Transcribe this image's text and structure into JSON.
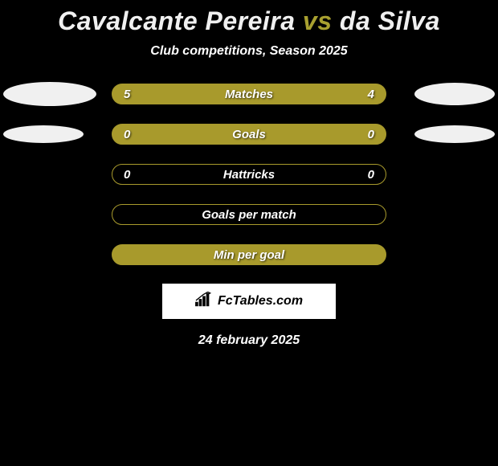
{
  "title": {
    "player1": "Cavalcante Pereira",
    "vs": "vs",
    "player2": "da Silva",
    "player1_color": "#f0f0f0",
    "vs_color": "#a8a030",
    "player2_color": "#f0f0f0"
  },
  "subtitle": "Club competitions, Season 2025",
  "background_color": "#000000",
  "stats": [
    {
      "label": "Matches",
      "left_value": "5",
      "right_value": "4",
      "bar_fill": "#a89a2c",
      "bar_border": "#a89a2c",
      "left_ellipse": {
        "width": 116,
        "height": 30,
        "color": "#f0f0f0"
      },
      "right_ellipse": {
        "width": 100,
        "height": 28,
        "color": "#f0f0f0"
      }
    },
    {
      "label": "Goals",
      "left_value": "0",
      "right_value": "0",
      "bar_fill": "#a89a2c",
      "bar_border": "#a89a2c",
      "left_ellipse": {
        "width": 100,
        "height": 22,
        "color": "#f0f0f0"
      },
      "right_ellipse": {
        "width": 100,
        "height": 22,
        "color": "#f0f0f0"
      }
    },
    {
      "label": "Hattricks",
      "left_value": "0",
      "right_value": "0",
      "bar_fill": "transparent",
      "bar_border": "#a89a2c",
      "left_ellipse": null,
      "right_ellipse": null
    },
    {
      "label": "Goals per match",
      "left_value": "",
      "right_value": "",
      "bar_fill": "transparent",
      "bar_border": "#a89a2c",
      "left_ellipse": null,
      "right_ellipse": null
    },
    {
      "label": "Min per goal",
      "left_value": "",
      "right_value": "",
      "bar_fill": "#a89a2c",
      "bar_border": "#a89a2c",
      "left_ellipse": null,
      "right_ellipse": null
    }
  ],
  "badge": {
    "text": "FcTables.com",
    "icon_name": "bar-chart-icon"
  },
  "date": "24 february 2025"
}
